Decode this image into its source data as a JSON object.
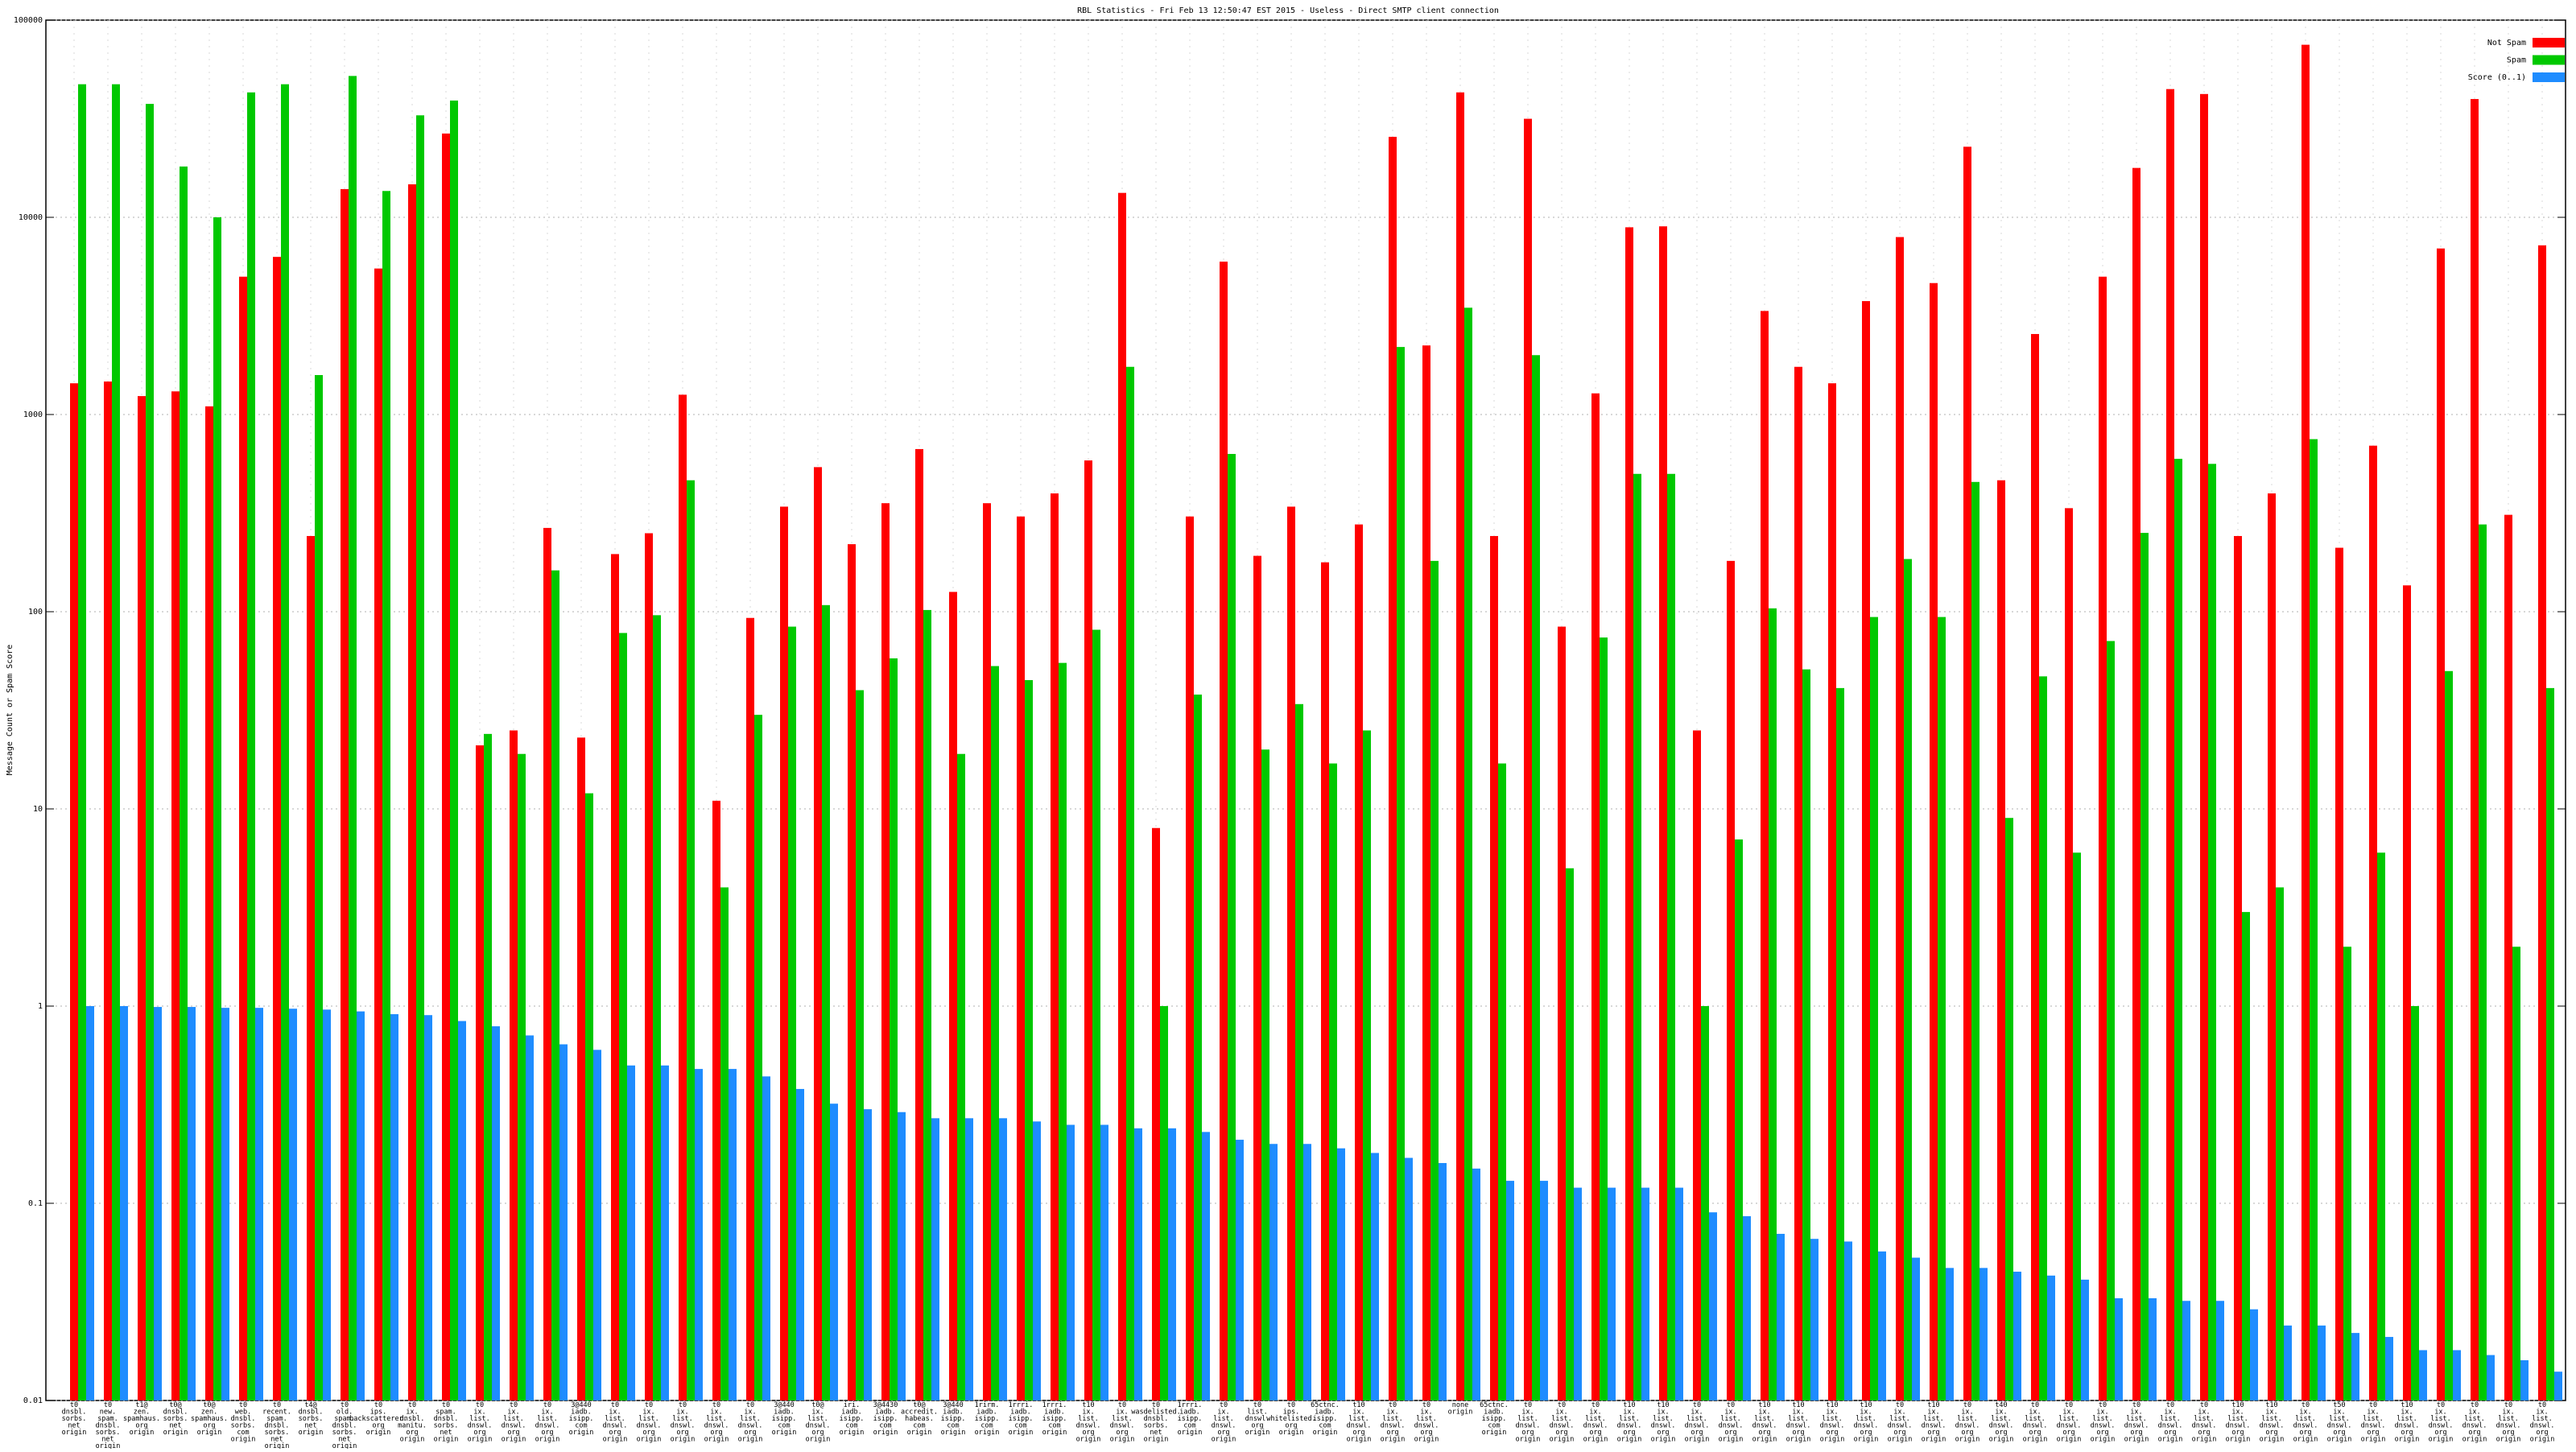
{
  "chart_data": {
    "type": "bar",
    "title": "RBL Statistics - Fri Feb 13 12:50:47 EST 2015 - Useless - Direct SMTP client connection",
    "y_label": "Message Count or Spam Score",
    "log_scale": true,
    "grid": true,
    "legend_position": "top-right",
    "ylim": [
      0.01,
      100000
    ],
    "yticks": [
      0.01,
      0.1,
      1,
      10,
      100,
      1000,
      10000,
      100000
    ],
    "categories": [
      "t0 dnsbl. sorbs. net origin",
      "t0 new. spam. dnsbl. sorbs. net origin",
      "t1@ zen. spamhaus. org origin",
      "t0@ dnsbl. sorbs. net origin",
      "t0@ zen. spamhaus. org origin",
      "t0 web. dnsbl. sorbs. com origin",
      "t0 recent. spam. dnsbl. sorbs. net origin",
      "t4@ dnsbl. sorbs. net origin",
      "t0 old. spam. dnsbl. sorbs. net origin",
      "t0 ips. backscatterer. org origin",
      "t0 ix. dnsbl. manitu. org origin",
      "t0 spam. dnsbl. sorbs. net origin",
      "t0 ix. list. dnswl. org origin",
      "t0 ix. list. dnswl. org origin",
      "t0 ix. list. dnswl. org origin",
      "3@440 iadb. isipp. com origin",
      "t0 ix. list. dnswl. org origin",
      "t0 ix. list. dnswl. org origin",
      "t0 ix. list. dnswl. org origin",
      "t0 ix. list. dnswl. org origin",
      "t0 ix. list. dnswl. org origin",
      "3@440 iadb. isipp. com origin",
      "t0@ ix. list. dnswl. org origin",
      "iri. iadb. isipp. com origin",
      "3@4430 iadb. isipp. com origin",
      "t0@ accredit. habeas. com origin",
      "3@440 iadb. isipp. com origin",
      "1rirm. iadb. isipp. com origin",
      "1rrri. iadb. isipp. com origin",
      "1rrri. iadb. isipp. com origin",
      "t10 ix. list. dnswl. org origin",
      "t0 ix. list. dnswl. org origin",
      "t0 wasdelisted. dnsbl. sorbs. net origin",
      "1rrri. iadb. isipp. com origin",
      "t0 ix. list. dnswl. org origin",
      "t0 list. dnswl. org origin",
      "t0 ips. whitelisted. org origin",
      "65ctnc. iadb. isipp. com origin",
      "t10 ix. list. dnswl. org origin",
      "t0 ix. list. dnswl. org origin",
      "t0 ix. list. dnswl. org origin",
      "none origin",
      "65ctnc. iadb. isipp. com origin",
      "t0 ix. list. dnswl. org origin",
      "t0 ix. list. dnswl. org origin",
      "t0 ix. list. dnswl. org origin",
      "t10 ix. list. dnswl. org origin",
      "t10 ix. list. dnswl. org origin",
      "t0 ix. list. dnswl. org origin",
      "t0 ix. list. dnswl. org origin",
      "t10 ix. list. dnswl. org origin",
      "t10 ix. list. dnswl. org origin",
      "t10 ix. list. dnswl. org origin",
      "t10 ix. list. dnswl. org origin",
      "t0 ix. list. dnswl. org origin",
      "t10 ix. list. dnswl. org origin",
      "t0 ix. list. dnswl. org origin",
      "t40 ix. list. dnswl. org origin",
      "t0 ix. list. dnswl. org origin",
      "t0 ix. list. dnswl. org origin",
      "t0 ix. list. dnswl. org origin",
      "t0 ix. list. dnswl. org origin",
      "t0 ix. list. dnswl. org origin",
      "t0 ix. list. dnswl. org origin",
      "t10 ix. list. dnswl. org origin",
      "t10 ix. list. dnswl. org origin",
      "t0 ix. list. dnswl. org origin",
      "t50 ix. list. dnswl. org origin",
      "t0 ix. list. dnswl. org origin",
      "t10 ix. list. dnswl. org origin",
      "t0 ix. list. dnswl. org origin",
      "t0 ix. list. dnswl. org origin",
      "t0 ix. list. dnswl. org origin",
      "t0 ix. list. dnswl. org origin"
    ],
    "series": [
      {
        "name": "Not Spam",
        "color": "#ff0000",
        "values": [
          1440,
          1470,
          1240,
          1310,
          1100,
          5000,
          6300,
          242,
          13900,
          5500,
          14700,
          26600,
          21,
          25,
          266,
          23,
          196,
          250,
          1260,
          11,
          93,
          341,
          541,
          220,
          355,
          668,
          126,
          355,
          304,
          398,
          585,
          13300,
          8,
          304,
          5960,
          192,
          341,
          178,
          277,
          25600,
          2240,
          43000,
          242,
          31600,
          84,
          1280,
          8900,
          9000,
          25,
          181,
          3350,
          1745,
          1440,
          3760,
          7940,
          4640,
          22800,
          464,
          2560,
          335,
          5000,
          17800,
          44700,
          42200,
          242,
          398,
          75000,
          211,
          695,
          136,
          6950,
          39800,
          310,
          7210
        ]
      },
      {
        "name": "Spam",
        "color": "#00c800",
        "values": [
          47300,
          47300,
          37600,
          18100,
          10000,
          43000,
          47300,
          1585,
          52100,
          13600,
          32900,
          39100,
          24,
          19,
          162,
          12,
          78,
          96,
          464,
          4,
          30,
          84,
          108,
          40,
          58,
          102,
          19,
          53,
          45,
          55,
          81,
          1745,
          1,
          38,
          631,
          20,
          34,
          17,
          25,
          2200,
          181,
          3480,
          17,
          2000,
          5,
          74,
          500,
          500,
          1,
          7,
          104,
          51,
          41,
          94,
          185,
          94,
          455,
          9,
          47,
          6,
          71,
          251,
          596,
          562,
          3,
          4,
          750,
          2,
          6,
          1,
          50,
          277,
          2,
          41
        ]
      },
      {
        "name": "Score (0..1)",
        "color": "#1e8cff",
        "values": [
          1.0,
          1.0,
          0.99,
          0.99,
          0.98,
          0.98,
          0.97,
          0.96,
          0.94,
          0.91,
          0.9,
          0.84,
          0.79,
          0.71,
          0.64,
          0.6,
          0.5,
          0.5,
          0.48,
          0.48,
          0.44,
          0.38,
          0.32,
          0.3,
          0.29,
          0.27,
          0.27,
          0.27,
          0.26,
          0.25,
          0.25,
          0.24,
          0.24,
          0.23,
          0.21,
          0.2,
          0.2,
          0.19,
          0.18,
          0.17,
          0.16,
          0.15,
          0.13,
          0.13,
          0.12,
          0.12,
          0.12,
          0.12,
          0.09,
          0.086,
          0.07,
          0.066,
          0.064,
          0.057,
          0.053,
          0.047,
          0.047,
          0.045,
          0.043,
          0.041,
          0.033,
          0.033,
          0.032,
          0.032,
          0.029,
          0.024,
          0.024,
          0.022,
          0.021,
          0.018,
          0.018,
          0.017,
          0.016,
          0.014
        ]
      }
    ]
  }
}
